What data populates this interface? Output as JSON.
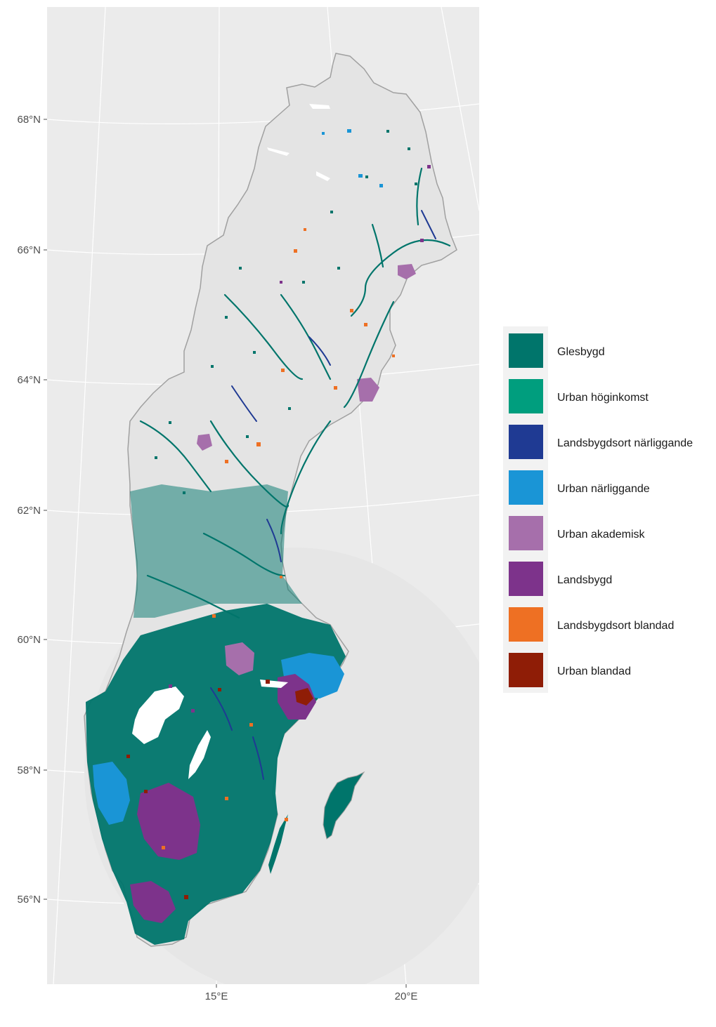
{
  "map": {
    "lat_labels": [
      "68°N",
      "66°N",
      "64°N",
      "62°N",
      "60°N",
      "58°N",
      "56°N"
    ],
    "lon_labels": [
      "15°E",
      "20°E"
    ],
    "colors": {
      "panel_bg": "#ebebeb",
      "grid": "#ffffff",
      "land": "#e4e4e4",
      "border": "#a0a0a0",
      "water": "#ffffff"
    }
  },
  "legend": {
    "background": "#f2f2f2",
    "items": [
      {
        "label": "Glesbygd",
        "color": "#00756b"
      },
      {
        "label": "Urban höginkomst",
        "color": "#009e7e"
      },
      {
        "label": "Landsbygdsort närliggande",
        "color": "#1f3a93"
      },
      {
        "label": "Urban närliggande",
        "color": "#1a95d6"
      },
      {
        "label": "Urban akademisk",
        "color": "#a66fab"
      },
      {
        "label": "Landsbygd",
        "color": "#7d338b"
      },
      {
        "label": "Landsbygdsort blandad",
        "color": "#ee7023"
      },
      {
        "label": "Urban blandad",
        "color": "#8f1d06"
      }
    ]
  }
}
